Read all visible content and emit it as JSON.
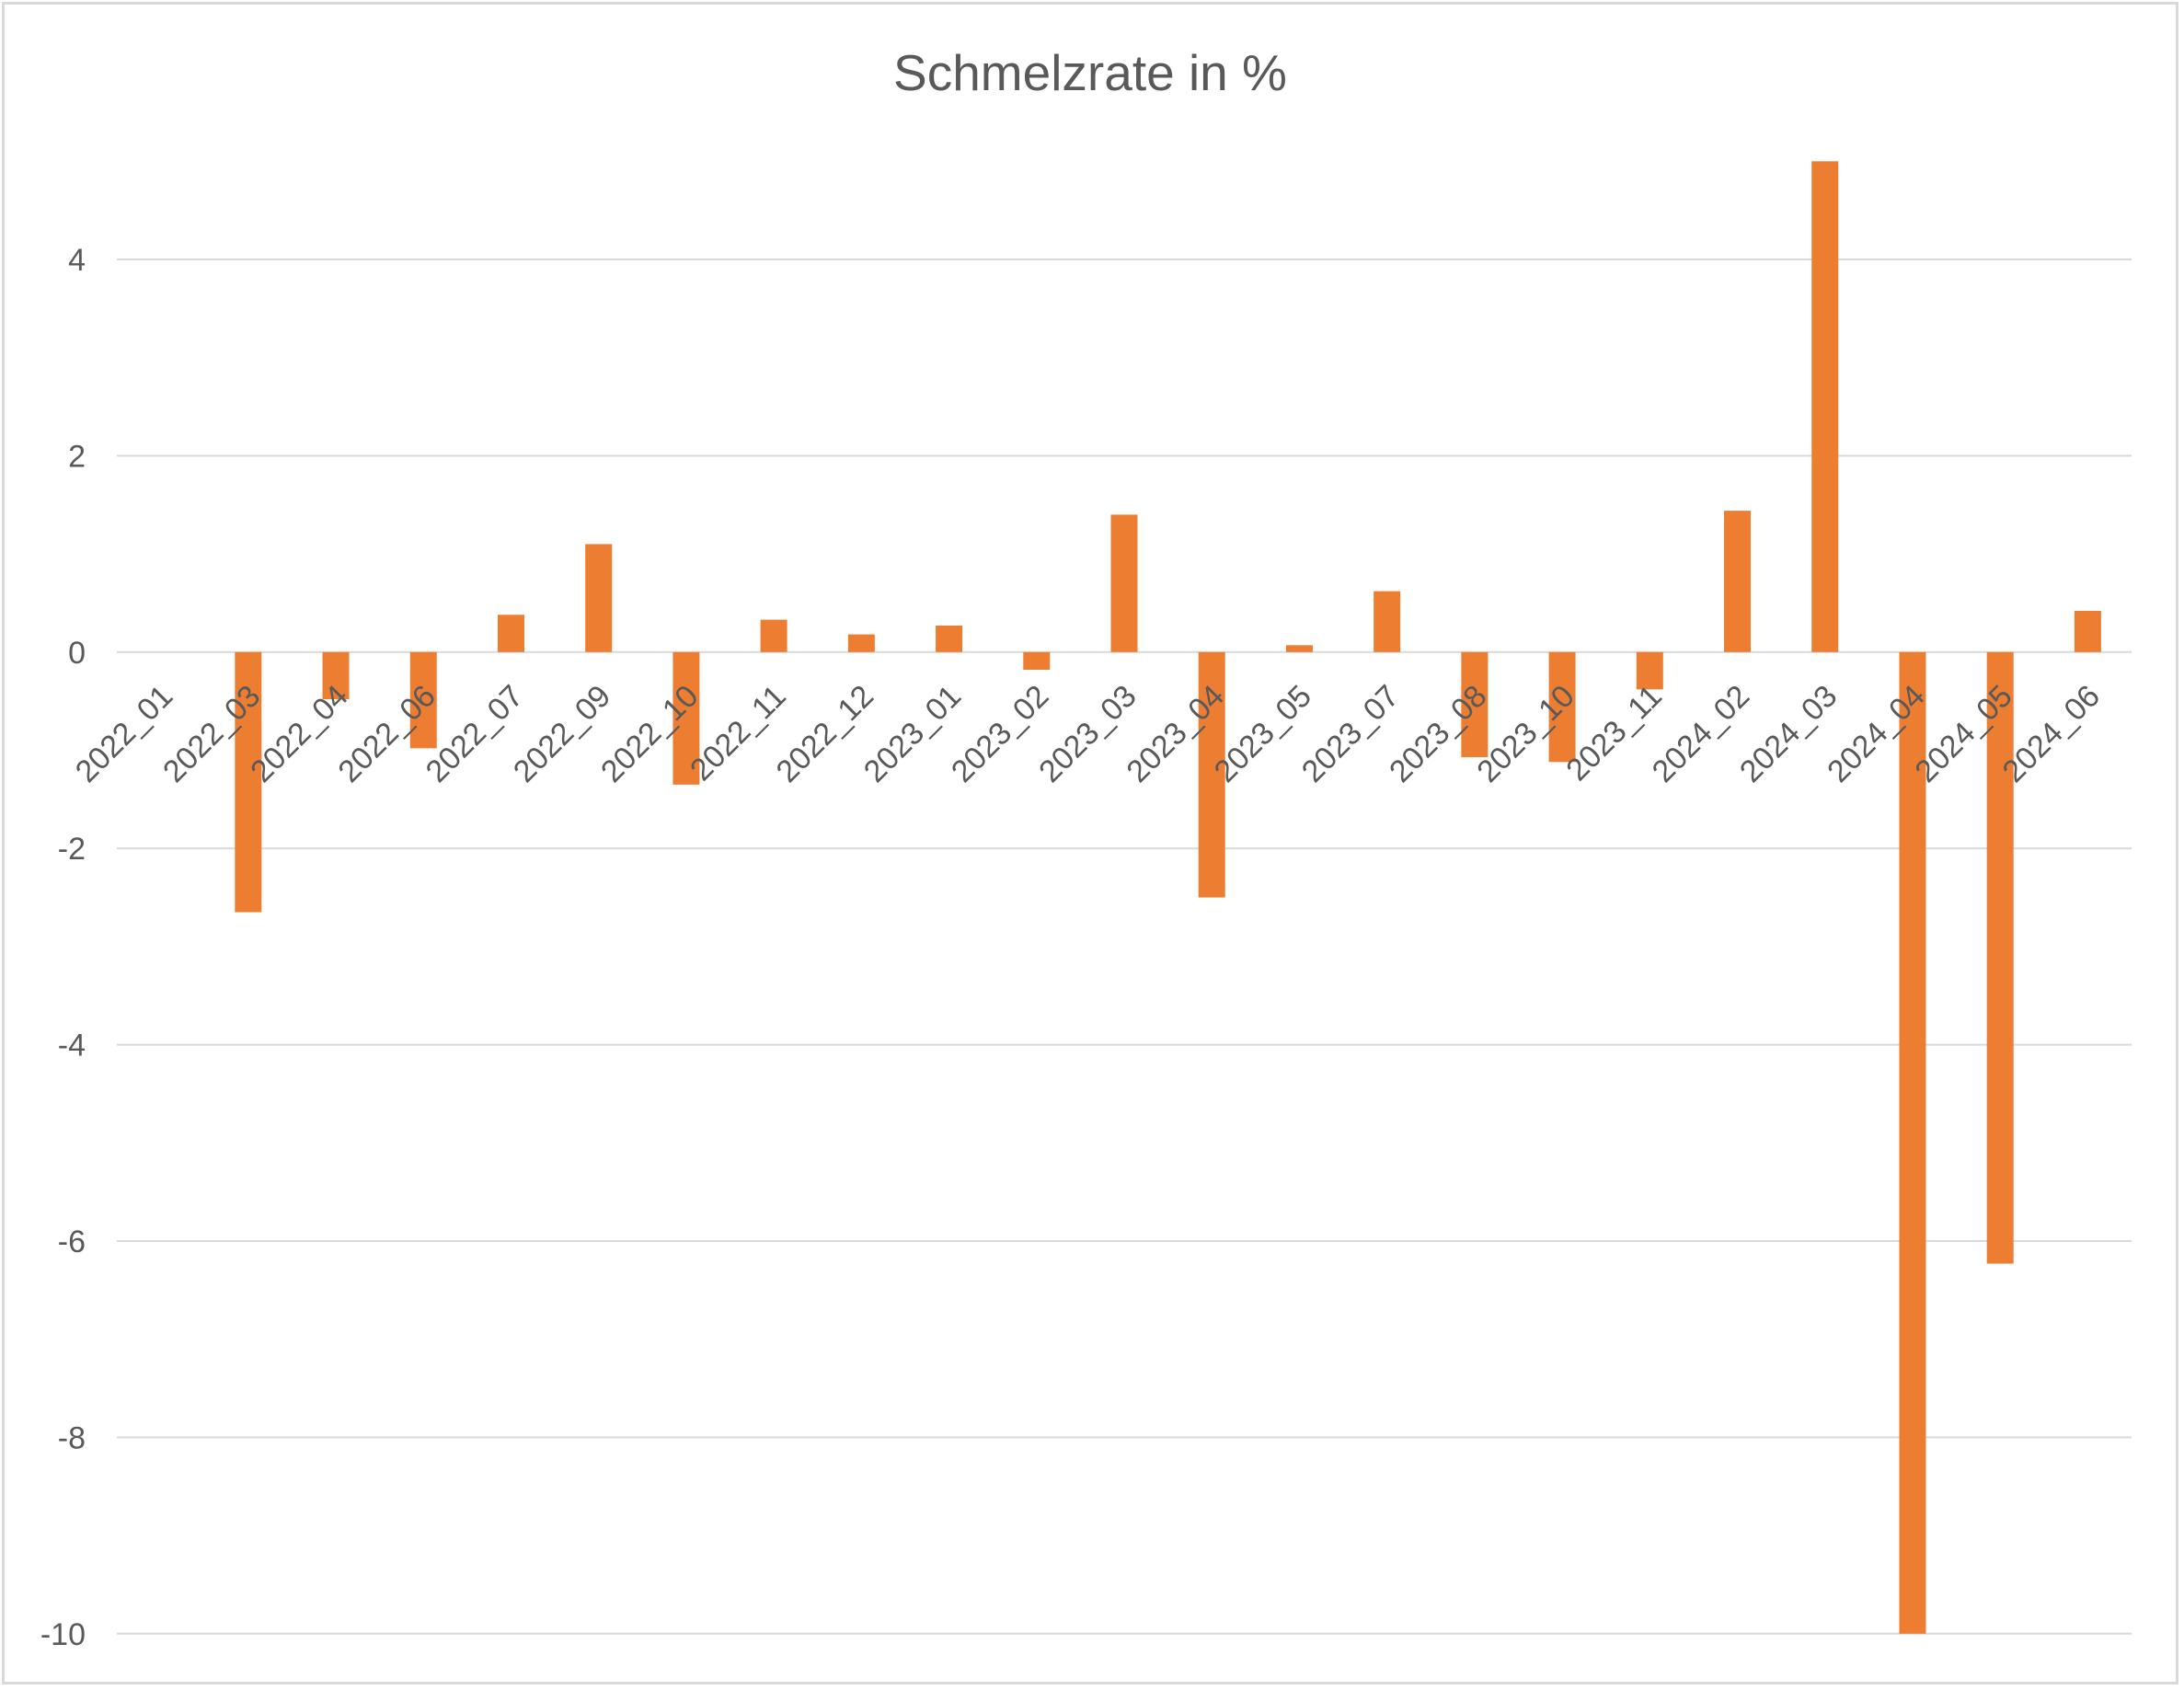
{
  "chart_data": {
    "type": "bar",
    "title": "Schmelzrate in %",
    "xlabel": "",
    "ylabel": "",
    "ylim": [
      -10,
      5
    ],
    "yticks": [
      4,
      2,
      0,
      -2,
      -4,
      -6,
      -8,
      -10
    ],
    "grid": true,
    "legend": "none",
    "bar_color": "#ed7d31",
    "categories": [
      "2022_01",
      "2022_03",
      "2022_04",
      "2022_06",
      "2022_07",
      "2022_09",
      "2022_10",
      "2022_11",
      "2022_12",
      "2023_01",
      "2023_02",
      "2023_03",
      "2023_04",
      "2023_05",
      "2023_07",
      "2023_08",
      "2023_10",
      "2023_11",
      "2024_02",
      "2024_03",
      "2024_04",
      "2024_05",
      "2024_06"
    ],
    "values": [
      0,
      -2.65,
      -0.48,
      -0.98,
      0.38,
      1.1,
      -1.35,
      0.33,
      0.18,
      0.27,
      -0.18,
      1.4,
      -2.5,
      0.07,
      0.62,
      -1.07,
      -1.12,
      -0.38,
      1.44,
      5.0,
      -10.0,
      -6.23,
      0.42
    ]
  }
}
